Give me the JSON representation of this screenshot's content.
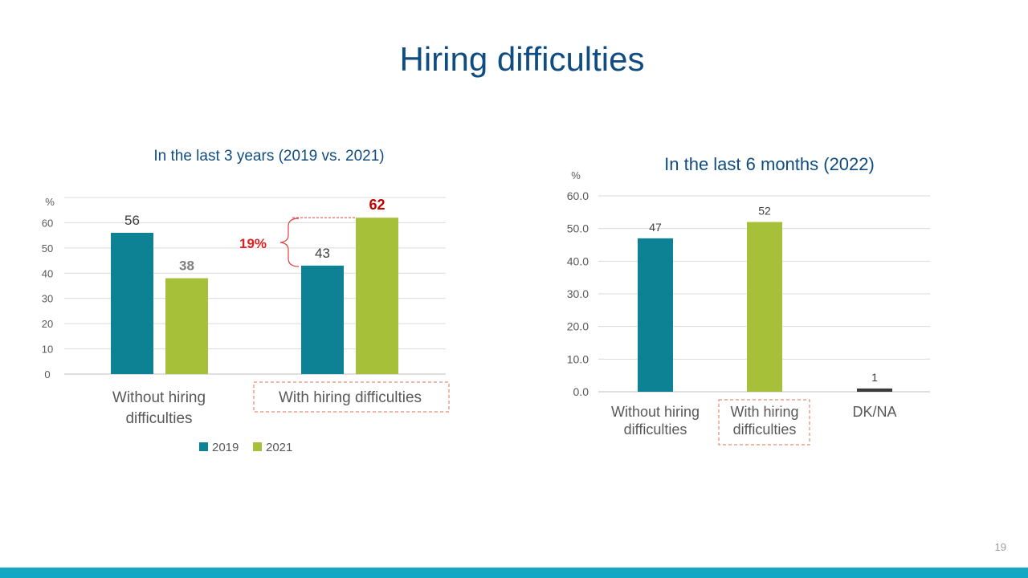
{
  "title": "Hiring difficulties",
  "page_number": "19",
  "colors": {
    "title": "#0f4c81",
    "teal": "#0e8295",
    "green": "#a7c03a",
    "dark": "#3a3a3a",
    "red": "#c00000",
    "footer": "#12a8c4"
  },
  "chart_data": [
    {
      "type": "bar",
      "title": "In the last 3 years (2019 vs. 2021)",
      "ylabel": "%",
      "ylim": [
        0,
        70
      ],
      "yticks": [
        "0",
        "10",
        "20",
        "30",
        "40",
        "50",
        "60"
      ],
      "grid": true,
      "legend_position": "bottom",
      "categories": [
        [
          "Without hiring",
          "difficulties"
        ],
        [
          "With hiring difficulties"
        ]
      ],
      "series": [
        {
          "name": "2019",
          "values": [
            56,
            43
          ],
          "labels": [
            "56",
            "43"
          ]
        },
        {
          "name": "2021",
          "values": [
            38,
            62
          ],
          "labels": [
            "38",
            "62"
          ]
        }
      ],
      "annotation": {
        "text": "19%"
      }
    },
    {
      "type": "bar",
      "title": "In the last 6 months (2022)",
      "ylabel": "%",
      "ylim": [
        0,
        60
      ],
      "yticks": [
        "0.0",
        "10.0",
        "20.0",
        "30.0",
        "40.0",
        "50.0",
        "60.0"
      ],
      "grid": true,
      "categories": [
        [
          "Without hiring",
          "difficulties"
        ],
        [
          "With hiring",
          "difficulties"
        ],
        [
          "DK/NA"
        ]
      ],
      "values": [
        47,
        52,
        1
      ],
      "labels": [
        "47",
        "52",
        "1"
      ]
    }
  ]
}
